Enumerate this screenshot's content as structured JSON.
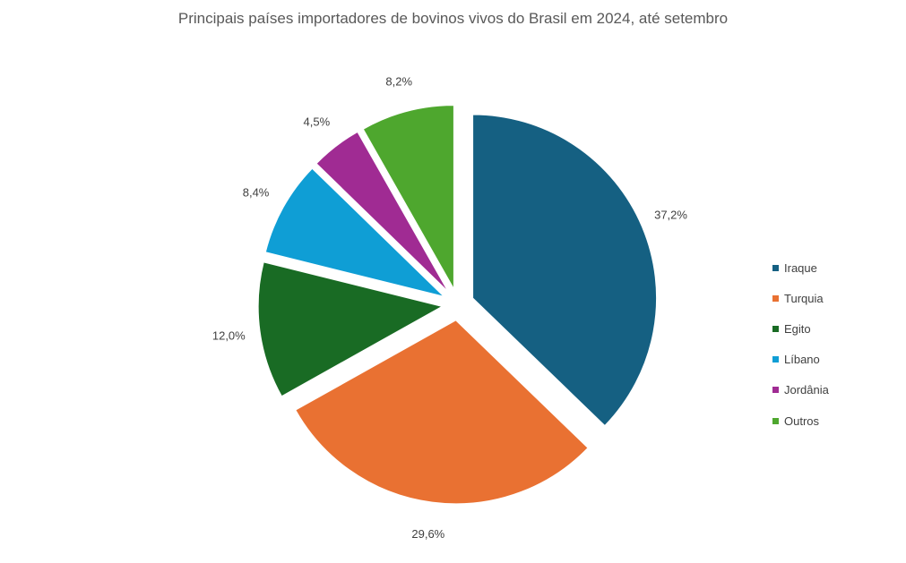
{
  "chart_data": {
    "type": "pie",
    "title": "Principais países importadores de bovinos vivos do Brasil em 2024, até setembro",
    "legend_position": "right",
    "exploded": true,
    "slices": [
      {
        "name": "Iraque",
        "value": 37.2,
        "label": "37,2%",
        "color": "#156082"
      },
      {
        "name": "Turquia",
        "value": 29.6,
        "label": "29,6%",
        "color": "#E97132"
      },
      {
        "name": "Egito",
        "value": 12.0,
        "label": "12,0%",
        "color": "#196B24"
      },
      {
        "name": "Líbano",
        "value": 8.4,
        "label": "8,4%",
        "color": "#0F9ED5"
      },
      {
        "name": "Jordânia",
        "value": 4.5,
        "label": "4,5%",
        "color": "#A02B93"
      },
      {
        "name": "Outros",
        "value": 8.2,
        "label": "8,2%",
        "color": "#4EA72E"
      }
    ]
  }
}
